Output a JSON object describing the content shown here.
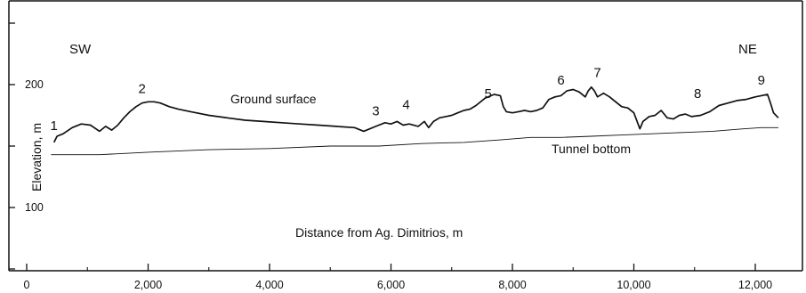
{
  "chart_data": {
    "type": "line",
    "title": "",
    "xlabel": "Distance from Ag. Dimitrios, m",
    "ylabel": "Elevation, m",
    "xlim": [
      0,
      12750
    ],
    "ylim": [
      45,
      250
    ],
    "x_ticks": [
      {
        "value": 0,
        "label": "0"
      },
      {
        "value": 2000,
        "label": "2,000"
      },
      {
        "value": 4000,
        "label": "4,000"
      },
      {
        "value": 6000,
        "label": "6,000"
      },
      {
        "value": 8000,
        "label": "8,000"
      },
      {
        "value": 10000,
        "label": "10,000"
      },
      {
        "value": 12000,
        "label": "12,000"
      }
    ],
    "y_ticks": [
      {
        "value": 100,
        "label": "100"
      },
      {
        "value": 200,
        "label": "200"
      }
    ],
    "corner_labels": {
      "left": "SW",
      "right": "NE"
    },
    "grid": false,
    "series": [
      {
        "name": "Ground surface",
        "x": [
          450,
          500,
          600,
          750,
          900,
          1050,
          1200,
          1300,
          1400,
          1500,
          1600,
          1700,
          1800,
          1900,
          2000,
          2100,
          2200,
          2350,
          2500,
          2700,
          3000,
          3300,
          3600,
          3900,
          4200,
          4500,
          4800,
          5100,
          5400,
          5550,
          5650,
          5750,
          5900,
          6000,
          6100,
          6200,
          6300,
          6450,
          6550,
          6620,
          6700,
          6800,
          6900,
          7000,
          7100,
          7200,
          7300,
          7400,
          7550,
          7700,
          7800,
          7850,
          7900,
          8000,
          8100,
          8200,
          8300,
          8400,
          8500,
          8600,
          8700,
          8800,
          8900,
          9000,
          9100,
          9200,
          9250,
          9300,
          9350,
          9400,
          9500,
          9600,
          9700,
          9800,
          9900,
          10000,
          10100,
          10150,
          10250,
          10350,
          10450,
          10550,
          10650,
          10750,
          10850,
          10950,
          11100,
          11250,
          11400,
          11550,
          11700,
          11850,
          12000,
          12100,
          12200,
          12250,
          12300,
          12380
        ],
        "y": [
          153,
          158,
          160,
          165,
          168,
          167,
          162,
          166,
          163,
          167,
          173,
          178,
          182,
          185,
          186,
          186,
          185,
          182,
          180,
          178,
          175,
          173,
          171,
          170,
          169,
          168,
          167,
          166,
          165,
          162,
          164,
          166,
          169,
          168,
          170,
          167,
          168,
          166,
          170,
          165,
          170,
          173,
          174,
          175,
          177,
          179,
          180,
          183,
          189,
          192,
          191,
          182,
          178,
          177,
          178,
          179,
          178,
          179,
          181,
          188,
          190,
          191,
          195,
          196,
          194,
          190,
          195,
          198,
          195,
          190,
          193,
          190,
          186,
          182,
          181,
          177,
          164,
          170,
          174,
          175,
          179,
          173,
          172,
          175,
          176,
          174,
          175,
          178,
          183,
          185,
          187,
          188,
          190,
          191,
          192,
          185,
          177,
          173
        ]
      },
      {
        "name": "Tunnel bottom",
        "x": [
          400,
          1200,
          2000,
          3000,
          4000,
          5000,
          5800,
          6500,
          7200,
          7800,
          8300,
          8800,
          9300,
          9800,
          10300,
          10800,
          11300,
          11800,
          12100,
          12380
        ],
        "y": [
          143,
          143,
          145,
          147,
          148,
          150,
          150,
          152,
          153,
          155,
          157,
          157,
          158,
          159,
          160,
          161,
          162,
          164,
          165,
          165
        ]
      }
    ],
    "annotations": [
      {
        "text": "1",
        "x": 450,
        "y": 163
      },
      {
        "text": "2",
        "x": 1900,
        "y": 193
      },
      {
        "text": "3",
        "x": 5750,
        "y": 175
      },
      {
        "text": "4",
        "x": 6250,
        "y": 180
      },
      {
        "text": "5",
        "x": 7600,
        "y": 189
      },
      {
        "text": "6",
        "x": 8800,
        "y": 200
      },
      {
        "text": "7",
        "x": 9400,
        "y": 206
      },
      {
        "text": "8",
        "x": 11050,
        "y": 189
      },
      {
        "text": "9",
        "x": 12100,
        "y": 200
      }
    ]
  }
}
